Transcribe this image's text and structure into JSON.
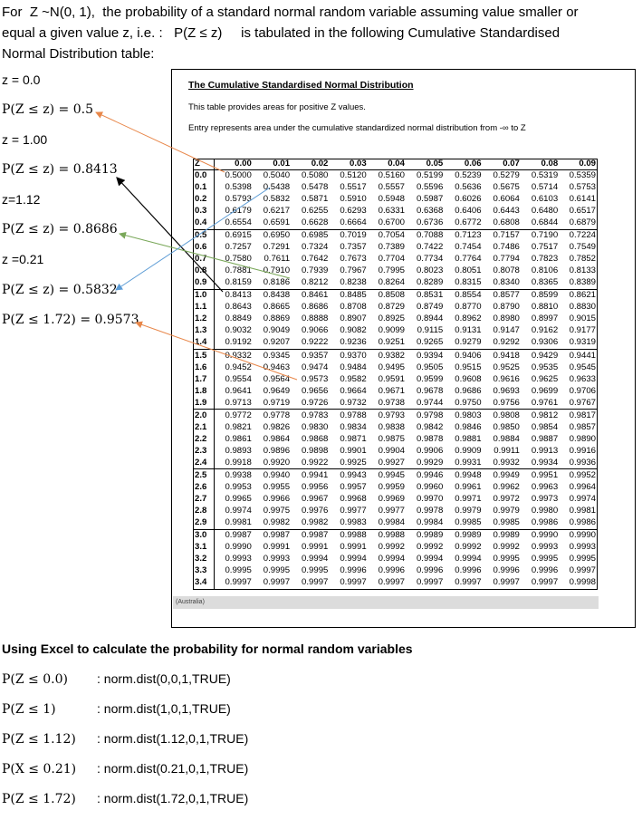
{
  "intro": {
    "line1": "For  Z ~N(0, 1),  the probability of a standard normal random variable assuming value smaller or",
    "line2": "equal a given value z, i.e. :   P(Z ≤ z)     is tabulated in the following Cumulative Standardised",
    "line3": "Normal Distribution table:"
  },
  "left_labels": [
    {
      "text": "z = 0.0",
      "math": false
    },
    {
      "text": "P(Z ≤ z) = 0.5",
      "math": true
    },
    {
      "text": "z = 1.00",
      "math": false
    },
    {
      "text": "P(Z ≤ z) = 0.8413",
      "math": true
    },
    {
      "text": "z=1.12",
      "math": false
    },
    {
      "text": "P(Z ≤ z) = 0.8686",
      "math": true
    },
    {
      "text": "z =0.21",
      "math": false
    },
    {
      "text": "P(Z ≤ z) = 0.5832",
      "math": true
    },
    {
      "text": "P(Z ≤ 1.72) = 0.9573",
      "math": true
    }
  ],
  "table": {
    "title": "The Cumulative Standardised Normal Distribution",
    "description": "This table provides areas for positive Z values.",
    "entry_note": "Entry represents area under the cumulative standardized normal distribution from  -∞  to Z",
    "footer": "(Australia)",
    "headers": [
      "Z",
      "0.00",
      "0.01",
      "0.02",
      "0.03",
      "0.04",
      "0.05",
      "0.06",
      "0.07",
      "0.08",
      "0.09"
    ],
    "rows": [
      [
        "0.0",
        "0.5000",
        "0.5040",
        "0.5080",
        "0.5120",
        "0.5160",
        "0.5199",
        "0.5239",
        "0.5279",
        "0.5319",
        "0.5359"
      ],
      [
        "0.1",
        "0.5398",
        "0.5438",
        "0.5478",
        "0.5517",
        "0.5557",
        "0.5596",
        "0.5636",
        "0.5675",
        "0.5714",
        "0.5753"
      ],
      [
        "0.2",
        "0.5793",
        "0.5832",
        "0.5871",
        "0.5910",
        "0.5948",
        "0.5987",
        "0.6026",
        "0.6064",
        "0.6103",
        "0.6141"
      ],
      [
        "0.3",
        "0.6179",
        "0.6217",
        "0.6255",
        "0.6293",
        "0.6331",
        "0.6368",
        "0.6406",
        "0.6443",
        "0.6480",
        "0.6517"
      ],
      [
        "0.4",
        "0.6554",
        "0.6591",
        "0.6628",
        "0.6664",
        "0.6700",
        "0.6736",
        "0.6772",
        "0.6808",
        "0.6844",
        "0.6879"
      ],
      [
        "0.5",
        "0.6915",
        "0.6950",
        "0.6985",
        "0.7019",
        "0.7054",
        "0.7088",
        "0.7123",
        "0.7157",
        "0.7190",
        "0.7224"
      ],
      [
        "0.6",
        "0.7257",
        "0.7291",
        "0.7324",
        "0.7357",
        "0.7389",
        "0.7422",
        "0.7454",
        "0.7486",
        "0.7517",
        "0.7549"
      ],
      [
        "0.7",
        "0.7580",
        "0.7611",
        "0.7642",
        "0.7673",
        "0.7704",
        "0.7734",
        "0.7764",
        "0.7794",
        "0.7823",
        "0.7852"
      ],
      [
        "0.8",
        "0.7881",
        "0.7910",
        "0.7939",
        "0.7967",
        "0.7995",
        "0.8023",
        "0.8051",
        "0.8078",
        "0.8106",
        "0.8133"
      ],
      [
        "0.9",
        "0.8159",
        "0.8186",
        "0.8212",
        "0.8238",
        "0.8264",
        "0.8289",
        "0.8315",
        "0.8340",
        "0.8365",
        "0.8389"
      ],
      [
        "1.0",
        "0.8413",
        "0.8438",
        "0.8461",
        "0.8485",
        "0.8508",
        "0.8531",
        "0.8554",
        "0.8577",
        "0.8599",
        "0.8621"
      ],
      [
        "1.1",
        "0.8643",
        "0.8665",
        "0.8686",
        "0.8708",
        "0.8729",
        "0.8749",
        "0.8770",
        "0.8790",
        "0.8810",
        "0.8830"
      ],
      [
        "1.2",
        "0.8849",
        "0.8869",
        "0.8888",
        "0.8907",
        "0.8925",
        "0.8944",
        "0.8962",
        "0.8980",
        "0.8997",
        "0.9015"
      ],
      [
        "1.3",
        "0.9032",
        "0.9049",
        "0.9066",
        "0.9082",
        "0.9099",
        "0.9115",
        "0.9131",
        "0.9147",
        "0.9162",
        "0.9177"
      ],
      [
        "1.4",
        "0.9192",
        "0.9207",
        "0.9222",
        "0.9236",
        "0.9251",
        "0.9265",
        "0.9279",
        "0.9292",
        "0.9306",
        "0.9319"
      ],
      [
        "1.5",
        "0.9332",
        "0.9345",
        "0.9357",
        "0.9370",
        "0.9382",
        "0.9394",
        "0.9406",
        "0.9418",
        "0.9429",
        "0.9441"
      ],
      [
        "1.6",
        "0.9452",
        "0.9463",
        "0.9474",
        "0.9484",
        "0.9495",
        "0.9505",
        "0.9515",
        "0.9525",
        "0.9535",
        "0.9545"
      ],
      [
        "1.7",
        "0.9554",
        "0.9564",
        "0.9573",
        "0.9582",
        "0.9591",
        "0.9599",
        "0.9608",
        "0.9616",
        "0.9625",
        "0.9633"
      ],
      [
        "1.8",
        "0.9641",
        "0.9649",
        "0.9656",
        "0.9664",
        "0.9671",
        "0.9678",
        "0.9686",
        "0.9693",
        "0.9699",
        "0.9706"
      ],
      [
        "1.9",
        "0.9713",
        "0.9719",
        "0.9726",
        "0.9732",
        "0.9738",
        "0.9744",
        "0.9750",
        "0.9756",
        "0.9761",
        "0.9767"
      ],
      [
        "2.0",
        "0.9772",
        "0.9778",
        "0.9783",
        "0.9788",
        "0.9793",
        "0.9798",
        "0.9803",
        "0.9808",
        "0.9812",
        "0.9817"
      ],
      [
        "2.1",
        "0.9821",
        "0.9826",
        "0.9830",
        "0.9834",
        "0.9838",
        "0.9842",
        "0.9846",
        "0.9850",
        "0.9854",
        "0.9857"
      ],
      [
        "2.2",
        "0.9861",
        "0.9864",
        "0.9868",
        "0.9871",
        "0.9875",
        "0.9878",
        "0.9881",
        "0.9884",
        "0.9887",
        "0.9890"
      ],
      [
        "2.3",
        "0.9893",
        "0.9896",
        "0.9898",
        "0.9901",
        "0.9904",
        "0.9906",
        "0.9909",
        "0.9911",
        "0.9913",
        "0.9916"
      ],
      [
        "2.4",
        "0.9918",
        "0.9920",
        "0.9922",
        "0.9925",
        "0.9927",
        "0.9929",
        "0.9931",
        "0.9932",
        "0.9934",
        "0.9936"
      ],
      [
        "2.5",
        "0.9938",
        "0.9940",
        "0.9941",
        "0.9943",
        "0.9945",
        "0.9946",
        "0.9948",
        "0.9949",
        "0.9951",
        "0.9952"
      ],
      [
        "2.6",
        "0.9953",
        "0.9955",
        "0.9956",
        "0.9957",
        "0.9959",
        "0.9960",
        "0.9961",
        "0.9962",
        "0.9963",
        "0.9964"
      ],
      [
        "2.7",
        "0.9965",
        "0.9966",
        "0.9967",
        "0.9968",
        "0.9969",
        "0.9970",
        "0.9971",
        "0.9972",
        "0.9973",
        "0.9974"
      ],
      [
        "2.8",
        "0.9974",
        "0.9975",
        "0.9976",
        "0.9977",
        "0.9977",
        "0.9978",
        "0.9979",
        "0.9979",
        "0.9980",
        "0.9981"
      ],
      [
        "2.9",
        "0.9981",
        "0.9982",
        "0.9982",
        "0.9983",
        "0.9984",
        "0.9984",
        "0.9985",
        "0.9985",
        "0.9986",
        "0.9986"
      ],
      [
        "3.0",
        "0.9987",
        "0.9987",
        "0.9987",
        "0.9988",
        "0.9988",
        "0.9989",
        "0.9989",
        "0.9989",
        "0.9990",
        "0.9990"
      ],
      [
        "3.1",
        "0.9990",
        "0.9991",
        "0.9991",
        "0.9991",
        "0.9992",
        "0.9992",
        "0.9992",
        "0.9992",
        "0.9993",
        "0.9993"
      ],
      [
        "3.2",
        "0.9993",
        "0.9993",
        "0.9994",
        "0.9994",
        "0.9994",
        "0.9994",
        "0.9994",
        "0.9995",
        "0.9995",
        "0.9995"
      ],
      [
        "3.3",
        "0.9995",
        "0.9995",
        "0.9995",
        "0.9996",
        "0.9996",
        "0.9996",
        "0.9996",
        "0.9996",
        "0.9996",
        "0.9997"
      ],
      [
        "3.4",
        "0.9997",
        "0.9997",
        "0.9997",
        "0.9997",
        "0.9997",
        "0.9997",
        "0.9997",
        "0.9997",
        "0.9997",
        "0.9998"
      ]
    ]
  },
  "excel": {
    "heading": "Using Excel to calculate the probability for normal random variables",
    "rows": [
      {
        "expr": "P(Z ≤ 0.0)",
        "formula": ": norm.dist(0,0,1,TRUE)"
      },
      {
        "expr": "P(Z ≤ 1)",
        "formula": ": norm.dist(1,0,1,TRUE)"
      },
      {
        "expr": "P(Z ≤ 1.12)",
        "formula": ": norm.dist(1.12,0,1,TRUE)"
      },
      {
        "expr": "P(X ≤ 0.21)",
        "formula": ": norm.dist(0.21,0,1,TRUE)"
      },
      {
        "expr": "P(Z ≤ 1.72)",
        "formula": ": norm.dist(1.72,0,1,TRUE)"
      }
    ]
  },
  "arrow_colors": {
    "orange": "#e8874a",
    "black": "#000000",
    "green": "#7aa85a",
    "blue": "#5b9bd5"
  }
}
